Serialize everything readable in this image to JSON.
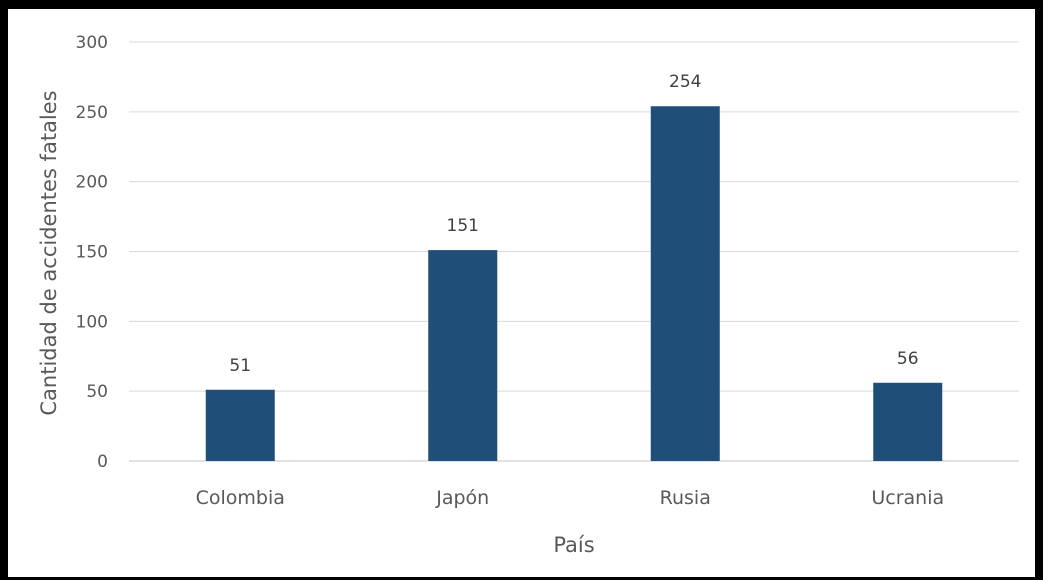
{
  "chart_data": {
    "type": "bar",
    "categories": [
      "Colombia",
      "Japón",
      "Rusia",
      "Ucrania"
    ],
    "values": [
      51,
      151,
      254,
      56
    ],
    "data_labels": [
      "51",
      "151",
      "254",
      "56"
    ],
    "xlabel": "País",
    "ylabel": "Cantidad de accidentes fatales",
    "ylim": [
      0,
      300
    ],
    "yticks": [
      0,
      50,
      100,
      150,
      200,
      250,
      300
    ],
    "grid": true,
    "bar_color": "#1F4E79",
    "gridline_color": "#D9D9D9"
  }
}
